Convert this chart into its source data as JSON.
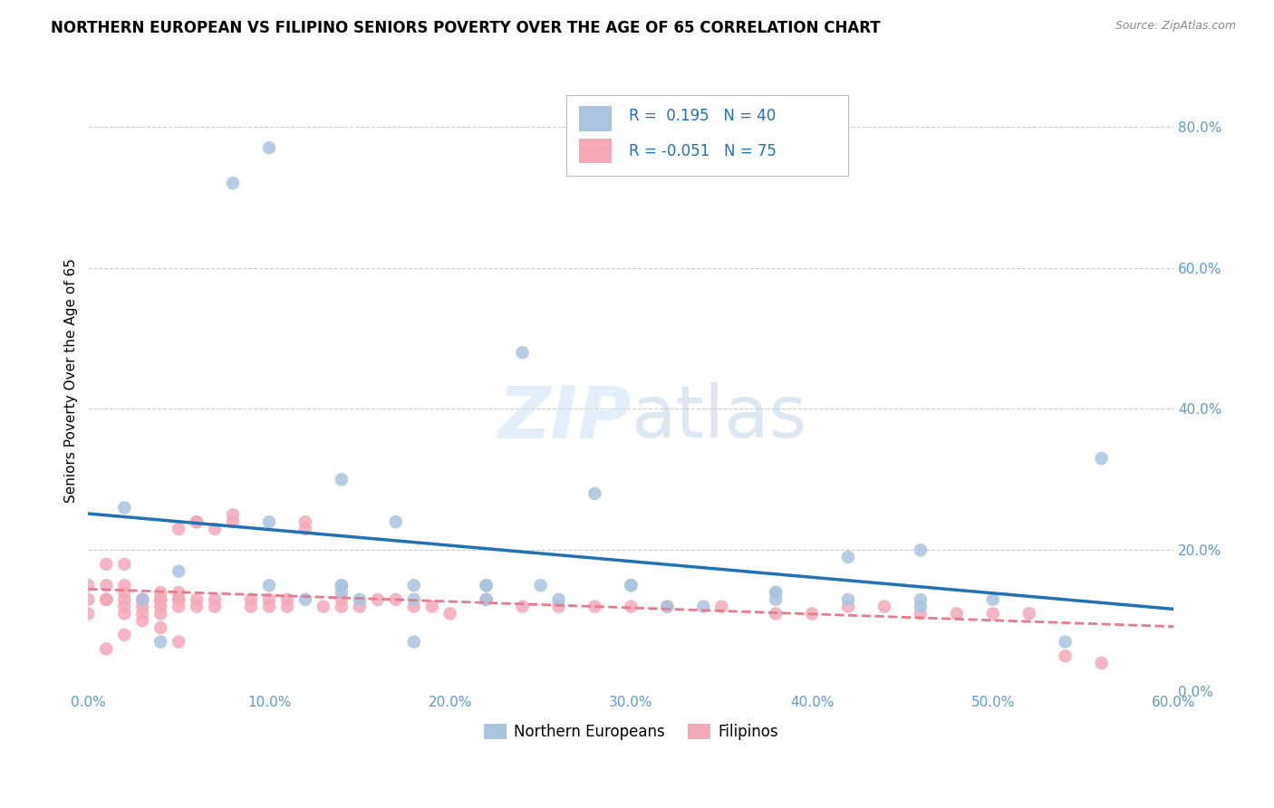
{
  "title": "NORTHERN EUROPEAN VS FILIPINO SENIORS POVERTY OVER THE AGE OF 65 CORRELATION CHART",
  "source": "Source: ZipAtlas.com",
  "ylabel_label": "Seniors Poverty Over the Age of 65",
  "xlim": [
    0.0,
    0.6
  ],
  "ylim": [
    0.0,
    0.88
  ],
  "xticks": [
    0.0,
    0.1,
    0.2,
    0.3,
    0.4,
    0.5,
    0.6
  ],
  "yticks": [
    0.0,
    0.2,
    0.4,
    0.6,
    0.8
  ],
  "axis_color": "#5b9bd5",
  "grid_color": "#cccccc",
  "watermark_zip": "ZIP",
  "watermark_atlas": "atlas",
  "blue_R": "0.195",
  "blue_N": "40",
  "pink_R": "-0.051",
  "pink_N": "75",
  "blue_scatter_x": [
    0.02,
    0.08,
    0.1,
    0.24,
    0.03,
    0.05,
    0.1,
    0.12,
    0.14,
    0.17,
    0.22,
    0.26,
    0.3,
    0.34,
    0.38,
    0.42,
    0.46,
    0.5,
    0.14,
    0.18,
    0.22,
    0.3,
    0.46,
    0.1,
    0.14,
    0.18,
    0.46,
    0.14,
    0.18,
    0.22,
    0.38,
    0.56,
    0.42,
    0.04,
    0.25,
    0.28,
    0.32,
    0.38,
    0.54,
    0.15
  ],
  "blue_scatter_y": [
    0.26,
    0.72,
    0.77,
    0.48,
    0.13,
    0.17,
    0.15,
    0.13,
    0.15,
    0.24,
    0.13,
    0.13,
    0.15,
    0.12,
    0.14,
    0.13,
    0.13,
    0.13,
    0.3,
    0.15,
    0.15,
    0.15,
    0.2,
    0.24,
    0.15,
    0.13,
    0.12,
    0.14,
    0.07,
    0.15,
    0.13,
    0.33,
    0.19,
    0.07,
    0.15,
    0.28,
    0.12,
    0.14,
    0.07,
    0.13
  ],
  "pink_scatter_x": [
    0.0,
    0.0,
    0.01,
    0.01,
    0.01,
    0.02,
    0.02,
    0.02,
    0.02,
    0.02,
    0.03,
    0.03,
    0.03,
    0.03,
    0.04,
    0.04,
    0.04,
    0.04,
    0.04,
    0.05,
    0.05,
    0.05,
    0.05,
    0.05,
    0.06,
    0.06,
    0.06,
    0.06,
    0.07,
    0.07,
    0.07,
    0.08,
    0.08,
    0.09,
    0.09,
    0.1,
    0.1,
    0.11,
    0.11,
    0.12,
    0.12,
    0.13,
    0.14,
    0.14,
    0.15,
    0.16,
    0.17,
    0.18,
    0.19,
    0.2,
    0.22,
    0.24,
    0.26,
    0.28,
    0.3,
    0.32,
    0.35,
    0.38,
    0.4,
    0.42,
    0.44,
    0.46,
    0.48,
    0.5,
    0.52,
    0.54,
    0.56,
    0.0,
    0.01,
    0.02,
    0.03,
    0.04,
    0.05,
    0.01,
    0.02
  ],
  "pink_scatter_y": [
    0.13,
    0.11,
    0.13,
    0.15,
    0.18,
    0.13,
    0.14,
    0.12,
    0.15,
    0.18,
    0.13,
    0.13,
    0.12,
    0.11,
    0.13,
    0.12,
    0.11,
    0.13,
    0.14,
    0.13,
    0.12,
    0.13,
    0.14,
    0.23,
    0.13,
    0.12,
    0.24,
    0.24,
    0.13,
    0.12,
    0.23,
    0.24,
    0.25,
    0.13,
    0.12,
    0.12,
    0.13,
    0.12,
    0.13,
    0.24,
    0.23,
    0.12,
    0.12,
    0.13,
    0.12,
    0.13,
    0.13,
    0.12,
    0.12,
    0.11,
    0.13,
    0.12,
    0.12,
    0.12,
    0.12,
    0.12,
    0.12,
    0.11,
    0.11,
    0.12,
    0.12,
    0.11,
    0.11,
    0.11,
    0.11,
    0.05,
    0.04,
    0.15,
    0.13,
    0.11,
    0.1,
    0.09,
    0.07,
    0.06,
    0.08
  ],
  "blue_color": "#a8c4e0",
  "pink_color": "#f4a8b8",
  "blue_line_color": "#2171b5",
  "pink_line_color": "#e87a8c",
  "legend_label_color": "#2171b5",
  "legend_rn_color": "#2171b5",
  "bottom_legend_label1": "Northern Europeans",
  "bottom_legend_label2": "Filipinos",
  "title_fontsize": 12,
  "axis_tick_fontsize": 11,
  "ylabel_fontsize": 11
}
